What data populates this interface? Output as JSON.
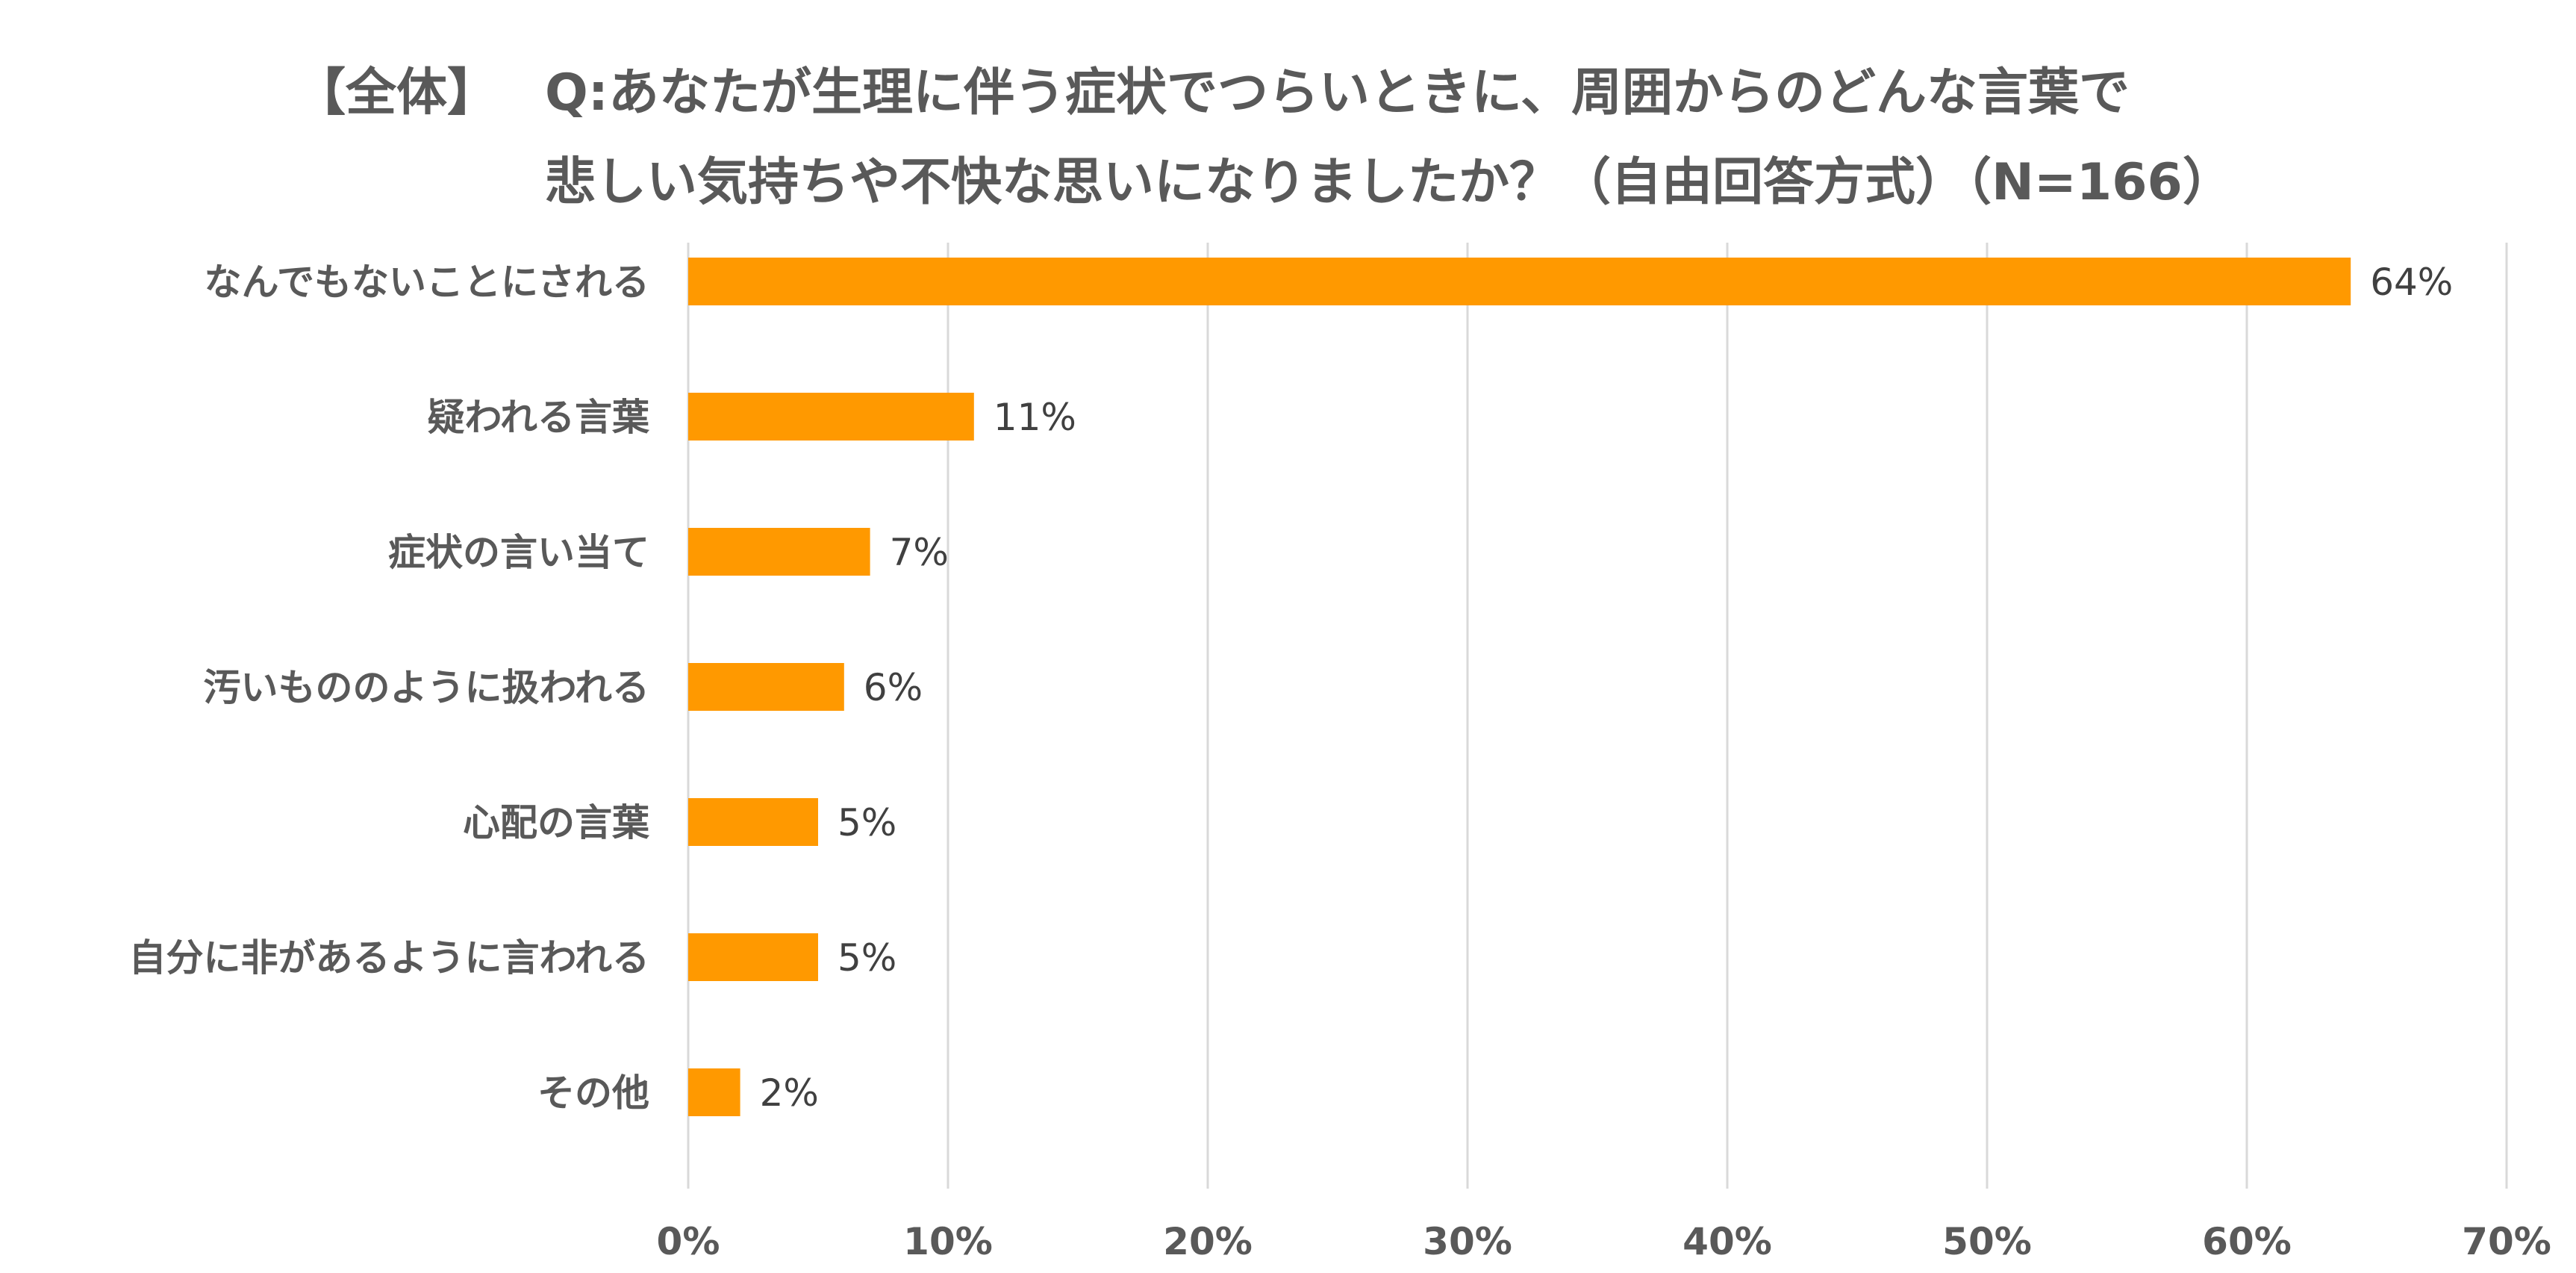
{
  "header": {
    "tag": "【全体】",
    "question_line1": "Q:あなたが生理に伴う症状でつらいときに、周囲からのどんな言葉で",
    "question_line2": "悲しい気持ちや不快な思いになりましたか？（自由回答方式）（N=166）"
  },
  "colors": {
    "bar": "#FF9900",
    "grid": "#D9D9D9",
    "label_text": "#595959",
    "value_text": "#404040"
  },
  "chart_data": {
    "type": "bar",
    "orientation": "horizontal",
    "categories": [
      "なんでもないことにされる",
      "疑われる言葉",
      "症状の言い当て",
      "汚いもののように扱われる",
      "心配の言葉",
      "自分に非があるように言われる",
      "その他"
    ],
    "values": [
      64,
      11,
      7,
      6,
      5,
      5,
      2
    ],
    "value_labels": [
      "64%",
      "11%",
      "7%",
      "6%",
      "5%",
      "5%",
      "2%"
    ],
    "xlim": [
      0,
      70
    ],
    "x_ticks": [
      0,
      10,
      20,
      30,
      40,
      50,
      60,
      70
    ],
    "x_tick_labels": [
      "0%",
      "10%",
      "20%",
      "30%",
      "40%",
      "50%",
      "60%",
      "70%"
    ],
    "grid": "vertical",
    "legend": "none"
  }
}
